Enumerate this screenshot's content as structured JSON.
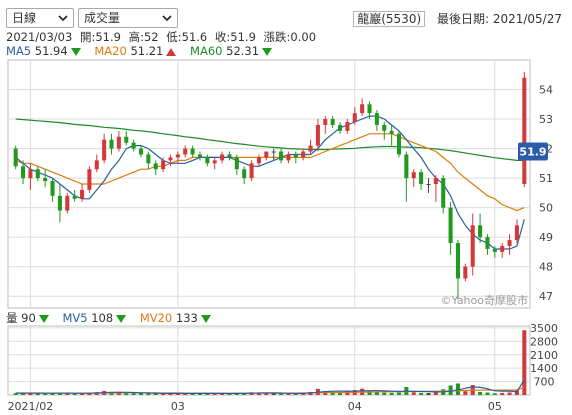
{
  "controls": {
    "period_select": "日線",
    "indicator_select": "成交量"
  },
  "stock": {
    "name": "龍巖(5530)",
    "last_date_label": "最後日期: 2021/05/27"
  },
  "ohlc": {
    "date": "2021/03/03",
    "open": "開:51.9",
    "high": "高:52",
    "low": "低:51.6",
    "close": "收:51.9",
    "change": "漲跌:0.00"
  },
  "ma_legend": [
    {
      "label": "MA5",
      "value": "51.94",
      "dir": "down",
      "color": "#2a5caa"
    },
    {
      "label": "MA20",
      "value": "51.21",
      "dir": "up",
      "color": "#e07a10"
    },
    {
      "label": "MA60",
      "value": "52.31",
      "dir": "down",
      "color": "#1f8a2a"
    }
  ],
  "vol_legend": [
    {
      "label": "量",
      "value": "90",
      "dir": "down",
      "color": "#333333"
    },
    {
      "label": "MV5",
      "value": "108",
      "dir": "down",
      "color": "#2a5caa"
    },
    {
      "label": "MV20",
      "value": "133",
      "dir": "down",
      "color": "#e07a10"
    }
  ],
  "watermark": "©Yahoo奇摩股市",
  "last_price_tag": "51.9",
  "colors": {
    "up": "#d23a3a",
    "down": "#1f9a1f",
    "ma5": "#2a5caa",
    "ma20": "#e07a10",
    "ma60": "#1f8a2a",
    "grid": "#dcdcdc"
  },
  "chart_data": {
    "type": "candlestick",
    "y_ticks": [
      "54",
      "53",
      "52",
      "51",
      "50",
      "49",
      "48",
      "47"
    ],
    "y_range": [
      46.6,
      55
    ],
    "x_ticks": [
      "2021/02",
      "03",
      "04",
      "05"
    ],
    "candles": [
      [
        52.0,
        52.1,
        51.3,
        51.4
      ],
      [
        51.4,
        51.6,
        50.8,
        51.0
      ],
      [
        51.0,
        51.5,
        50.6,
        51.3
      ],
      [
        51.3,
        51.4,
        50.9,
        51.0
      ],
      [
        51.0,
        51.3,
        50.7,
        50.9
      ],
      [
        50.9,
        51.0,
        50.2,
        50.4
      ],
      [
        50.4,
        50.8,
        49.5,
        49.9
      ],
      [
        49.9,
        50.5,
        49.8,
        50.4
      ],
      [
        50.4,
        50.6,
        50.2,
        50.3
      ],
      [
        50.3,
        50.8,
        50.2,
        50.6
      ],
      [
        50.6,
        51.4,
        50.5,
        51.3
      ],
      [
        51.3,
        51.8,
        51.2,
        51.6
      ],
      [
        51.6,
        52.5,
        51.5,
        52.3
      ],
      [
        52.3,
        52.5,
        51.8,
        52.0
      ],
      [
        52.0,
        52.6,
        51.9,
        52.4
      ],
      [
        52.4,
        52.6,
        52.1,
        52.2
      ],
      [
        52.2,
        52.3,
        51.9,
        52.0
      ],
      [
        52.0,
        52.1,
        51.7,
        51.8
      ],
      [
        51.8,
        51.9,
        51.3,
        51.5
      ],
      [
        51.5,
        51.6,
        51.1,
        51.3
      ],
      [
        51.3,
        51.7,
        51.2,
        51.6
      ],
      [
        51.6,
        51.8,
        51.4,
        51.7
      ],
      [
        51.7,
        51.9,
        51.5,
        51.8
      ],
      [
        51.8,
        52.1,
        51.7,
        52.0
      ],
      [
        52.0,
        52.1,
        51.7,
        51.8
      ],
      [
        51.8,
        51.9,
        51.6,
        51.7
      ],
      [
        51.7,
        51.8,
        51.4,
        51.5
      ],
      [
        51.5,
        51.7,
        51.3,
        51.6
      ],
      [
        51.6,
        51.9,
        51.5,
        51.8
      ],
      [
        51.8,
        51.9,
        51.6,
        51.7
      ],
      [
        51.7,
        51.8,
        51.1,
        51.3
      ],
      [
        51.3,
        51.4,
        50.8,
        51.0
      ],
      [
        51.0,
        51.6,
        50.9,
        51.5
      ],
      [
        51.5,
        51.8,
        51.4,
        51.7
      ],
      [
        51.7,
        51.9,
        51.6,
        51.9
      ],
      [
        51.9,
        52.0,
        51.6,
        51.9
      ],
      [
        51.9,
        52.0,
        51.5,
        51.6
      ],
      [
        51.6,
        51.9,
        51.5,
        51.8
      ],
      [
        51.8,
        51.9,
        51.5,
        51.7
      ],
      [
        51.7,
        52.0,
        51.6,
        51.9
      ],
      [
        51.9,
        52.3,
        51.8,
        52.1
      ],
      [
        52.1,
        53.0,
        51.9,
        52.8
      ],
      [
        52.8,
        53.1,
        52.5,
        53.0
      ],
      [
        53.0,
        53.1,
        52.7,
        52.8
      ],
      [
        52.8,
        52.9,
        52.5,
        52.6
      ],
      [
        52.6,
        53.0,
        52.5,
        52.9
      ],
      [
        52.9,
        53.4,
        52.8,
        53.2
      ],
      [
        53.2,
        53.7,
        53.1,
        53.5
      ],
      [
        53.5,
        53.6,
        53.0,
        53.2
      ],
      [
        53.2,
        53.3,
        52.6,
        52.8
      ],
      [
        52.8,
        52.9,
        52.3,
        52.6
      ],
      [
        52.6,
        52.8,
        52.1,
        52.5
      ],
      [
        52.5,
        52.6,
        51.7,
        51.8
      ],
      [
        51.8,
        51.9,
        50.2,
        51.0
      ],
      [
        51.0,
        51.3,
        50.7,
        51.2
      ],
      [
        51.2,
        51.3,
        50.6,
        50.8
      ],
      [
        50.8,
        51.0,
        50.5,
        50.8
      ],
      [
        50.8,
        51.1,
        50.2,
        51.0
      ],
      [
        51.0,
        51.1,
        49.8,
        50.0
      ],
      [
        50.0,
        50.2,
        48.4,
        48.8
      ],
      [
        48.8,
        48.9,
        46.9,
        47.6
      ],
      [
        47.6,
        48.1,
        47.5,
        48.0
      ],
      [
        48.0,
        49.8,
        47.7,
        49.4
      ],
      [
        49.4,
        49.8,
        48.8,
        49.0
      ],
      [
        49.0,
        49.1,
        48.4,
        48.6
      ],
      [
        48.6,
        48.7,
        48.3,
        48.5
      ],
      [
        48.5,
        48.8,
        48.3,
        48.7
      ],
      [
        48.7,
        49.1,
        48.4,
        48.9
      ],
      [
        48.9,
        49.6,
        48.8,
        49.4
      ],
      [
        50.8,
        54.6,
        50.7,
        54.4
      ]
    ],
    "ma5": [
      51.7,
      51.5,
      51.3,
      51.2,
      51.1,
      51.0,
      50.8,
      50.6,
      50.4,
      50.3,
      50.3,
      50.6,
      50.9,
      51.3,
      51.6,
      52.0,
      52.1,
      52.1,
      52.0,
      51.8,
      51.6,
      51.5,
      51.5,
      51.5,
      51.6,
      51.7,
      51.7,
      51.7,
      51.7,
      51.7,
      51.6,
      51.5,
      51.4,
      51.4,
      51.5,
      51.6,
      51.7,
      51.8,
      51.8,
      51.8,
      51.8,
      52.0,
      52.3,
      52.5,
      52.7,
      52.8,
      52.9,
      53.0,
      53.1,
      53.1,
      53.0,
      52.8,
      52.6,
      52.3,
      52.0,
      51.7,
      51.3,
      51.0,
      50.8,
      50.4,
      49.8,
      49.4,
      49.1,
      48.9,
      48.8,
      48.6,
      48.6,
      48.6,
      48.7,
      49.6
    ],
    "ma20": [
      51.6,
      51.5,
      51.5,
      51.4,
      51.3,
      51.2,
      51.1,
      51.0,
      50.9,
      50.8,
      50.8,
      50.8,
      50.8,
      50.9,
      51.0,
      51.1,
      51.2,
      51.3,
      51.3,
      51.4,
      51.4,
      51.5,
      51.6,
      51.6,
      51.7,
      51.7,
      51.7,
      51.7,
      51.7,
      51.7,
      51.7,
      51.7,
      51.7,
      51.7,
      51.7,
      51.7,
      51.7,
      51.7,
      51.7,
      51.7,
      51.7,
      51.8,
      51.9,
      52.0,
      52.1,
      52.2,
      52.3,
      52.4,
      52.5,
      52.5,
      52.5,
      52.5,
      52.4,
      52.3,
      52.2,
      52.1,
      52.0,
      51.9,
      51.7,
      51.5,
      51.2,
      51.0,
      50.8,
      50.6,
      50.4,
      50.3,
      50.1,
      50.0,
      49.9,
      50.0
    ],
    "ma60": [
      53.0,
      52.98,
      52.96,
      52.94,
      52.92,
      52.9,
      52.88,
      52.85,
      52.82,
      52.8,
      52.78,
      52.75,
      52.72,
      52.7,
      52.68,
      52.65,
      52.62,
      52.6,
      52.57,
      52.54,
      52.5,
      52.47,
      52.44,
      52.4,
      52.37,
      52.34,
      52.3,
      52.27,
      52.24,
      52.2,
      52.17,
      52.14,
      52.11,
      52.08,
      52.06,
      52.04,
      52.02,
      52.0,
      51.99,
      51.98,
      51.97,
      51.97,
      51.97,
      51.98,
      51.99,
      52.0,
      52.01,
      52.03,
      52.05,
      52.06,
      52.07,
      52.07,
      52.06,
      52.05,
      52.04,
      52.03,
      52.01,
      51.99,
      51.96,
      51.93,
      51.89,
      51.85,
      51.81,
      51.77,
      51.73,
      51.69,
      51.66,
      51.63,
      51.6,
      51.6
    ],
    "volume_ticks": [
      "3500",
      "2800",
      "2100",
      "1400",
      "700"
    ],
    "volume_range": [
      0,
      3600
    ],
    "volume": [
      90,
      110,
      95,
      80,
      85,
      100,
      130,
      90,
      75,
      70,
      120,
      150,
      210,
      130,
      120,
      100,
      85,
      80,
      95,
      90,
      70,
      75,
      80,
      110,
      85,
      70,
      80,
      75,
      90,
      80,
      100,
      120,
      140,
      110,
      90,
      90,
      85,
      80,
      75,
      100,
      160,
      320,
      210,
      170,
      130,
      190,
      260,
      330,
      210,
      160,
      120,
      110,
      130,
      420,
      140,
      110,
      100,
      140,
      300,
      500,
      600,
      200,
      520,
      160,
      130,
      90,
      110,
      130,
      250,
      3380
    ],
    "mv5": [
      100,
      98,
      96,
      94,
      92,
      92,
      98,
      100,
      94,
      88,
      93,
      104,
      126,
      139,
      146,
      142,
      129,
      113,
      102,
      92,
      84,
      82,
      82,
      85,
      84,
      82,
      85,
      82,
      83,
      79,
      85,
      89,
      97,
      104,
      112,
      110,
      103,
      91,
      84,
      86,
      102,
      147,
      177,
      196,
      206,
      204,
      192,
      216,
      224,
      230,
      216,
      198,
      188,
      196,
      187,
      182,
      178,
      164,
      160,
      200,
      268,
      348,
      424,
      396,
      322,
      220,
      202,
      204,
      172,
      790
    ],
    "mv20": [
      105,
      104,
      103,
      102,
      101,
      100,
      100,
      99,
      99,
      98,
      98,
      100,
      103,
      106,
      108,
      110,
      111,
      111,
      110,
      108,
      106,
      104,
      103,
      101,
      100,
      99,
      98,
      97,
      96,
      95,
      94,
      94,
      95,
      96,
      97,
      98,
      99,
      100,
      101,
      102,
      106,
      115,
      122,
      128,
      133,
      138,
      143,
      150,
      156,
      161,
      165,
      168,
      172,
      179,
      184,
      188,
      192,
      196,
      202,
      213,
      228,
      236,
      248,
      252,
      254,
      253,
      254,
      257,
      263,
      412
    ]
  }
}
